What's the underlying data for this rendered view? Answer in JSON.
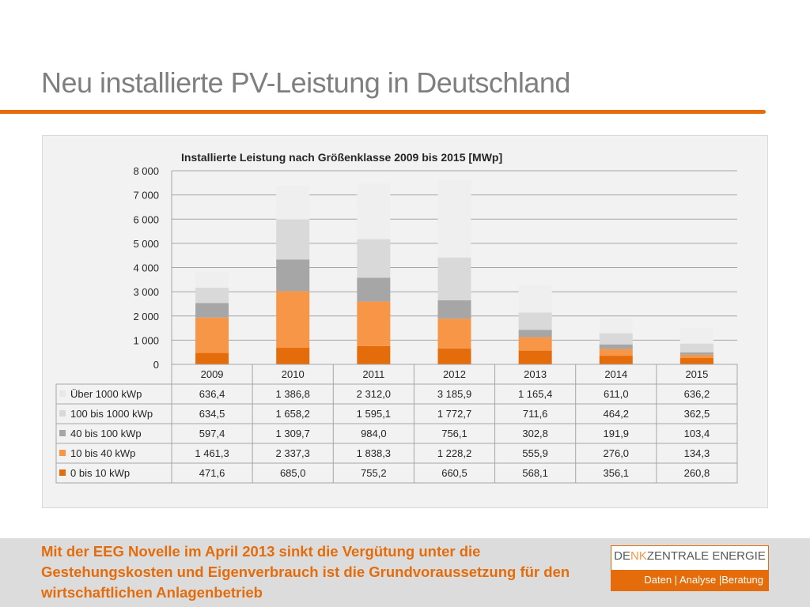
{
  "slide": {
    "title": "Neu installierte PV-Leistung in Deutschland",
    "message": "Mit der EEG Novelle im April 2013 sinkt die Vergütung unter die Gestehungskosten und Eigenverbrauch ist die Grundvoraussetzung für den wirtschaftlichen Anlagenbetrieb"
  },
  "logo": {
    "name_part1": "DE",
    "name_part2": "NK",
    "name_part3": "ZENTRALE ENERGIE",
    "tagline": "Daten | Analyse |Beratung"
  },
  "chart_data": {
    "type": "bar",
    "stacked": true,
    "title": "Installierte Leistung nach Größenklasse 2009 bis 2015 [MWp]",
    "categories": [
      "2009",
      "2010",
      "2011",
      "2012",
      "2013",
      "2014",
      "2015"
    ],
    "ylim": [
      0,
      8000
    ],
    "yticks": [
      0,
      1000,
      2000,
      3000,
      4000,
      5000,
      6000,
      7000,
      8000
    ],
    "ytick_labels": [
      "0",
      "1 000",
      "2 000",
      "3 000",
      "4 000",
      "5 000",
      "6 000",
      "7 000",
      "8 000"
    ],
    "grid": true,
    "legend": "data-table-left",
    "series": [
      {
        "name": "0 bis 10 kWp",
        "color": "#e46c0a",
        "values": [
          471.6,
          685.0,
          755.2,
          660.5,
          568.1,
          356.1,
          260.8
        ],
        "labels": [
          "471,6",
          "685,0",
          "755,2",
          "660,5",
          "568,1",
          "356,1",
          "260,8"
        ]
      },
      {
        "name": "10 bis 40 kWp",
        "color": "#f79646",
        "values": [
          1461.3,
          2337.3,
          1838.3,
          1228.2,
          555.9,
          276.0,
          134.3
        ],
        "labels": [
          "1 461,3",
          "2 337,3",
          "1 838,3",
          "1 228,2",
          "555,9",
          "276,0",
          "134,3"
        ]
      },
      {
        "name": "40 bis 100 kWp",
        "color": "#a6a6a6",
        "values": [
          597.4,
          1309.7,
          984.0,
          756.1,
          302.8,
          191.9,
          103.4
        ],
        "labels": [
          "597,4",
          "1 309,7",
          "984,0",
          "756,1",
          "302,8",
          "191,9",
          "103,4"
        ]
      },
      {
        "name": "100 bis 1000 kWp",
        "color": "#d9d9d9",
        "values": [
          634.5,
          1658.2,
          1595.1,
          1772.7,
          711.6,
          464.2,
          362.5
        ],
        "labels": [
          "634,5",
          "1 658,2",
          "1 595,1",
          "1 772,7",
          "711,6",
          "464,2",
          "362,5"
        ]
      },
      {
        "name": "Über 1000 kWp",
        "color": "#efefef",
        "values": [
          636.4,
          1386.8,
          2312.0,
          3185.9,
          1165.4,
          611.0,
          636.2
        ],
        "labels": [
          "636,4",
          "1 386,8",
          "2 312,0",
          "3 185,9",
          "1 165,4",
          "611,0",
          "636,2"
        ]
      }
    ],
    "table_row_order": [
      "Über 1000 kWp",
      "100 bis 1000 kWp",
      "40 bis 100 kWp",
      "10 bis 40 kWp",
      "0 bis 10 kWp"
    ]
  }
}
